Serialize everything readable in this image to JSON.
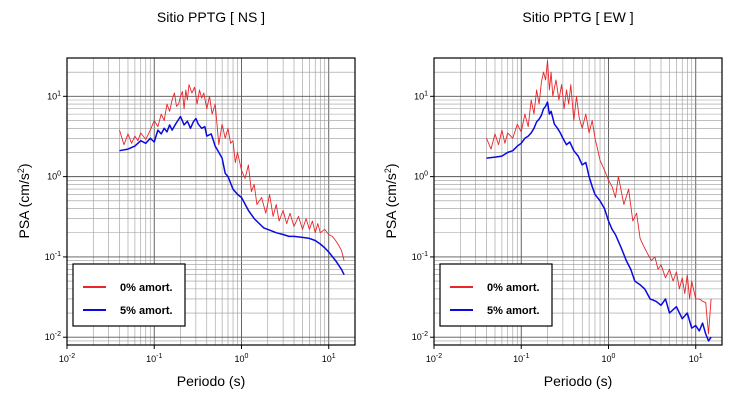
{
  "chart_data": [
    {
      "type": "line",
      "title": "Sitio PPTG [ NS ]",
      "xlabel": "Periodo (s)",
      "ylabel_base": "PSA (cm/s",
      "ylabel_sup": "2",
      "ylabel_close": ")",
      "xscale": "log",
      "yscale": "log",
      "xlim": [
        0.01,
        20
      ],
      "ylim": [
        0.008,
        30
      ],
      "grid": true,
      "legend_position": "bottom-left",
      "x_ticks": [
        {
          "base": "10",
          "exp": "-2"
        },
        {
          "base": "10",
          "exp": "-1"
        },
        {
          "base": "10",
          "exp": "0"
        },
        {
          "base": "10",
          "exp": "1"
        }
      ],
      "y_ticks": [
        {
          "base": "10",
          "exp": "-2"
        },
        {
          "base": "10",
          "exp": "-1"
        },
        {
          "base": "10",
          "exp": "0"
        },
        {
          "base": "10",
          "exp": "1"
        }
      ],
      "series": [
        {
          "name": "0% amort.",
          "color": "#e8262b",
          "x": [
            0.04,
            0.045,
            0.05,
            0.055,
            0.06,
            0.065,
            0.07,
            0.08,
            0.09,
            0.1,
            0.11,
            0.12,
            0.13,
            0.14,
            0.15,
            0.16,
            0.17,
            0.18,
            0.19,
            0.2,
            0.21,
            0.22,
            0.23,
            0.24,
            0.25,
            0.27,
            0.29,
            0.31,
            0.33,
            0.35,
            0.37,
            0.4,
            0.43,
            0.46,
            0.5,
            0.55,
            0.6,
            0.65,
            0.7,
            0.75,
            0.8,
            0.85,
            0.9,
            1.0,
            1.1,
            1.2,
            1.3,
            1.4,
            1.5,
            1.7,
            1.9,
            2.1,
            2.3,
            2.5,
            2.7,
            3.0,
            3.3,
            3.6,
            4.0,
            4.5,
            5.0,
            5.5,
            6.0,
            6.5,
            7.0,
            7.5,
            8.0,
            9.0,
            10.0,
            11.0,
            12.0,
            13.0,
            14.0,
            15.0
          ],
          "y": [
            3.8,
            2.5,
            3.4,
            2.6,
            3.2,
            2.8,
            3.5,
            2.9,
            3.8,
            5.0,
            4.2,
            6.0,
            5.0,
            8.0,
            6.5,
            9.0,
            11.0,
            7.5,
            8.0,
            10.0,
            11.5,
            7.0,
            12.0,
            9.0,
            14.0,
            11.0,
            13.0,
            8.0,
            12.0,
            9.5,
            11.0,
            7.0,
            10.0,
            6.0,
            8.0,
            2.5,
            4.5,
            3.0,
            4.0,
            2.6,
            2.8,
            1.5,
            2.0,
            1.2,
            0.95,
            1.4,
            0.65,
            0.8,
            0.45,
            0.55,
            0.35,
            0.6,
            0.32,
            0.45,
            0.28,
            0.38,
            0.26,
            0.35,
            0.24,
            0.32,
            0.22,
            0.3,
            0.22,
            0.28,
            0.2,
            0.26,
            0.2,
            0.22,
            0.19,
            0.18,
            0.16,
            0.14,
            0.12,
            0.09
          ]
        },
        {
          "name": "5% amort.",
          "color": "#0a0ae0",
          "x": [
            0.04,
            0.05,
            0.06,
            0.07,
            0.08,
            0.09,
            0.1,
            0.11,
            0.12,
            0.13,
            0.14,
            0.15,
            0.16,
            0.18,
            0.2,
            0.22,
            0.24,
            0.26,
            0.28,
            0.3,
            0.32,
            0.35,
            0.38,
            0.4,
            0.45,
            0.5,
            0.55,
            0.6,
            0.65,
            0.7,
            0.8,
            0.9,
            1.0,
            1.2,
            1.4,
            1.6,
            1.8,
            2.0,
            2.5,
            3.0,
            3.5,
            4.0,
            5.0,
            6.0,
            7.0,
            8.0,
            9.0,
            10.0,
            12.0,
            14.0,
            15.0
          ],
          "y": [
            2.1,
            2.2,
            2.4,
            2.8,
            2.6,
            3.0,
            2.7,
            3.8,
            3.4,
            4.0,
            3.6,
            4.4,
            3.8,
            4.7,
            5.6,
            4.4,
            4.9,
            4.0,
            4.8,
            5.3,
            4.5,
            4.0,
            4.2,
            3.2,
            3.4,
            2.4,
            2.0,
            1.7,
            1.1,
            1.0,
            0.7,
            0.6,
            0.55,
            0.38,
            0.3,
            0.26,
            0.23,
            0.22,
            0.2,
            0.19,
            0.18,
            0.18,
            0.175,
            0.17,
            0.16,
            0.145,
            0.13,
            0.115,
            0.09,
            0.07,
            0.06
          ]
        }
      ]
    },
    {
      "type": "line",
      "title": "Sitio PPTG [ EW ]",
      "xlabel": "Periodo (s)",
      "ylabel_base": "PSA (cm/s",
      "ylabel_sup": "2",
      "ylabel_close": ")",
      "xscale": "log",
      "yscale": "log",
      "xlim": [
        0.01,
        20
      ],
      "ylim": [
        0.008,
        30
      ],
      "grid": true,
      "legend_position": "bottom-left",
      "x_ticks": [
        {
          "base": "10",
          "exp": "-2"
        },
        {
          "base": "10",
          "exp": "-1"
        },
        {
          "base": "10",
          "exp": "0"
        },
        {
          "base": "10",
          "exp": "1"
        }
      ],
      "y_ticks": [
        {
          "base": "10",
          "exp": "-2"
        },
        {
          "base": "10",
          "exp": "-1"
        },
        {
          "base": "10",
          "exp": "0"
        },
        {
          "base": "10",
          "exp": "1"
        }
      ],
      "series": [
        {
          "name": "0% amort.",
          "color": "#e8262b",
          "x": [
            0.04,
            0.045,
            0.05,
            0.055,
            0.06,
            0.065,
            0.07,
            0.08,
            0.09,
            0.1,
            0.11,
            0.12,
            0.13,
            0.14,
            0.15,
            0.16,
            0.17,
            0.18,
            0.19,
            0.2,
            0.21,
            0.22,
            0.23,
            0.25,
            0.27,
            0.29,
            0.31,
            0.33,
            0.35,
            0.37,
            0.4,
            0.43,
            0.46,
            0.5,
            0.55,
            0.6,
            0.65,
            0.7,
            0.75,
            0.8,
            0.9,
            1.0,
            1.1,
            1.2,
            1.3,
            1.5,
            1.7,
            1.9,
            2.1,
            2.3,
            2.5,
            2.8,
            3.1,
            3.4,
            3.7,
            4.0,
            4.5,
            5.0,
            5.5,
            6.0,
            6.5,
            7.0,
            7.5,
            8.0,
            8.5,
            9.0,
            10.0,
            11.0,
            12.0,
            13.0,
            14.0,
            15.0
          ],
          "y": [
            3.0,
            2.2,
            3.4,
            2.5,
            3.8,
            2.6,
            3.5,
            3.0,
            4.5,
            3.6,
            6.0,
            4.2,
            9.0,
            6.0,
            12.0,
            8.0,
            15.0,
            20.0,
            16.0,
            28.0,
            12.0,
            20.0,
            10.0,
            16.0,
            9.0,
            14.0,
            7.0,
            12.0,
            8.0,
            14.0,
            5.0,
            10.0,
            5.5,
            4.0,
            6.0,
            3.5,
            5.0,
            3.0,
            2.2,
            1.6,
            1.2,
            0.9,
            0.75,
            0.55,
            1.0,
            0.45,
            0.7,
            0.28,
            0.35,
            0.17,
            0.14,
            0.11,
            0.09,
            0.1,
            0.07,
            0.08,
            0.055,
            0.07,
            0.05,
            0.065,
            0.04,
            0.055,
            0.035,
            0.06,
            0.03,
            0.05,
            0.03,
            0.03,
            0.028,
            0.027,
            0.011,
            0.03
          ]
        },
        {
          "name": "5% amort.",
          "color": "#0a0ae0",
          "x": [
            0.04,
            0.05,
            0.06,
            0.07,
            0.08,
            0.09,
            0.1,
            0.11,
            0.12,
            0.13,
            0.14,
            0.15,
            0.16,
            0.17,
            0.18,
            0.19,
            0.2,
            0.21,
            0.22,
            0.24,
            0.26,
            0.28,
            0.3,
            0.33,
            0.36,
            0.4,
            0.45,
            0.5,
            0.55,
            0.6,
            0.65,
            0.7,
            0.8,
            0.9,
            1.0,
            1.1,
            1.2,
            1.4,
            1.6,
            1.8,
            2.0,
            2.3,
            2.6,
            3.0,
            3.5,
            4.0,
            4.5,
            5.0,
            6.0,
            7.0,
            8.0,
            9.0,
            10.0,
            11.0,
            12.0,
            13.0,
            14.0,
            15.0
          ],
          "y": [
            1.7,
            1.75,
            1.8,
            2.0,
            2.1,
            2.4,
            2.6,
            3.0,
            3.2,
            3.5,
            4.0,
            4.8,
            5.2,
            5.8,
            7.0,
            7.5,
            8.5,
            6.0,
            6.5,
            4.5,
            4.0,
            3.5,
            3.0,
            2.5,
            2.7,
            2.1,
            1.8,
            1.4,
            1.5,
            1.0,
            0.75,
            0.6,
            0.5,
            0.4,
            0.28,
            0.22,
            0.19,
            0.13,
            0.09,
            0.07,
            0.05,
            0.045,
            0.04,
            0.03,
            0.028,
            0.025,
            0.03,
            0.02,
            0.024,
            0.017,
            0.02,
            0.013,
            0.014,
            0.012,
            0.015,
            0.011,
            0.009,
            0.01
          ]
        }
      ]
    }
  ]
}
